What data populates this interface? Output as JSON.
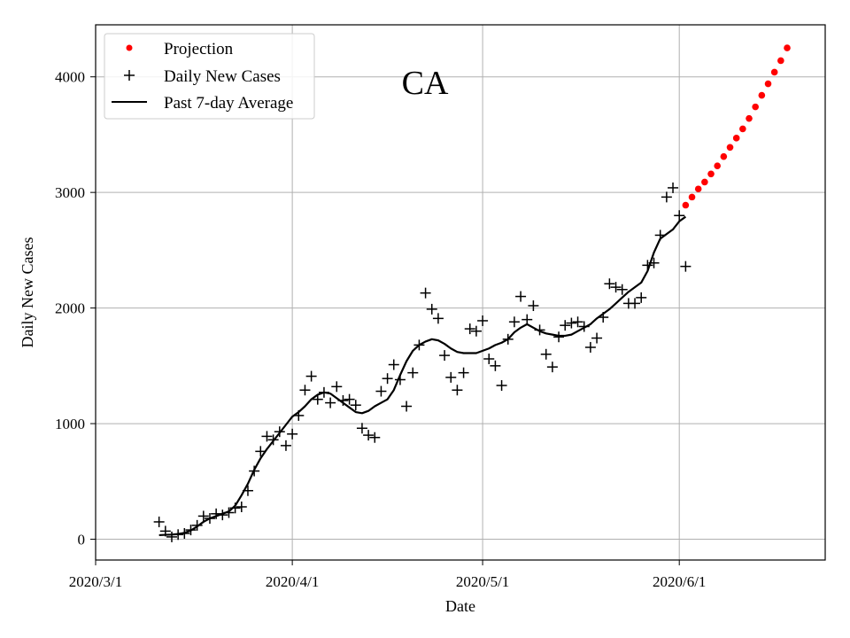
{
  "chart_data": {
    "type": "scatter",
    "title": "CA",
    "xlabel": "Date",
    "ylabel": "Daily New Cases",
    "grid": true,
    "legend_position": "top-left",
    "x_ticks": [
      {
        "day": 0,
        "label": "2020/3/1"
      },
      {
        "day": 31,
        "label": "2020/4/1"
      },
      {
        "day": 61,
        "label": "2020/5/1"
      },
      {
        "day": 92,
        "label": "2020/6/1"
      }
    ],
    "y_ticks": [
      0,
      1000,
      2000,
      3000,
      4000
    ],
    "xlim": [
      0,
      115
    ],
    "ylim": [
      -180,
      4450
    ],
    "x_unit": "days since 2020/3/1",
    "series": [
      {
        "name": "Projection",
        "marker": "dot",
        "color": "#ff0000",
        "points": [
          [
            93,
            2890
          ],
          [
            94,
            2960
          ],
          [
            95,
            3030
          ],
          [
            96,
            3090
          ],
          [
            97,
            3160
          ],
          [
            98,
            3230
          ],
          [
            99,
            3310
          ],
          [
            100,
            3390
          ],
          [
            101,
            3470
          ],
          [
            102,
            3550
          ],
          [
            103,
            3640
          ],
          [
            104,
            3740
          ],
          [
            105,
            3840
          ],
          [
            106,
            3940
          ],
          [
            107,
            4040
          ],
          [
            108,
            4140
          ],
          [
            109,
            4250
          ]
        ]
      },
      {
        "name": "Daily New Cases",
        "marker": "plus",
        "color": "#000000",
        "points": [
          [
            10,
            150
          ],
          [
            11,
            70
          ],
          [
            12,
            20
          ],
          [
            13,
            40
          ],
          [
            14,
            50
          ],
          [
            15,
            80
          ],
          [
            16,
            120
          ],
          [
            17,
            200
          ],
          [
            18,
            180
          ],
          [
            19,
            220
          ],
          [
            20,
            210
          ],
          [
            21,
            230
          ],
          [
            22,
            270
          ],
          [
            23,
            280
          ],
          [
            24,
            420
          ],
          [
            25,
            590
          ],
          [
            26,
            760
          ],
          [
            27,
            890
          ],
          [
            28,
            860
          ],
          [
            29,
            930
          ],
          [
            30,
            810
          ],
          [
            31,
            910
          ],
          [
            32,
            1070
          ],
          [
            33,
            1290
          ],
          [
            34,
            1410
          ],
          [
            35,
            1210
          ],
          [
            36,
            1270
          ],
          [
            37,
            1180
          ],
          [
            38,
            1320
          ],
          [
            39,
            1200
          ],
          [
            40,
            1210
          ],
          [
            41,
            1160
          ],
          [
            42,
            960
          ],
          [
            43,
            900
          ],
          [
            44,
            880
          ],
          [
            45,
            1280
          ],
          [
            46,
            1390
          ],
          [
            47,
            1510
          ],
          [
            48,
            1380
          ],
          [
            49,
            1150
          ],
          [
            50,
            1440
          ],
          [
            51,
            1680
          ],
          [
            52,
            2130
          ],
          [
            53,
            1990
          ],
          [
            54,
            1910
          ],
          [
            55,
            1590
          ],
          [
            56,
            1400
          ],
          [
            57,
            1290
          ],
          [
            58,
            1440
          ],
          [
            59,
            1820
          ],
          [
            60,
            1800
          ],
          [
            61,
            1890
          ],
          [
            62,
            1560
          ],
          [
            63,
            1500
          ],
          [
            64,
            1330
          ],
          [
            65,
            1730
          ],
          [
            66,
            1880
          ],
          [
            67,
            2100
          ],
          [
            68,
            1900
          ],
          [
            69,
            2020
          ],
          [
            70,
            1810
          ],
          [
            71,
            1600
          ],
          [
            72,
            1490
          ],
          [
            73,
            1750
          ],
          [
            74,
            1850
          ],
          [
            75,
            1870
          ],
          [
            76,
            1880
          ],
          [
            77,
            1840
          ],
          [
            78,
            1660
          ],
          [
            79,
            1740
          ],
          [
            80,
            1920
          ],
          [
            81,
            2210
          ],
          [
            82,
            2180
          ],
          [
            83,
            2160
          ],
          [
            84,
            2040
          ],
          [
            85,
            2040
          ],
          [
            86,
            2090
          ],
          [
            87,
            2370
          ],
          [
            88,
            2390
          ],
          [
            89,
            2630
          ],
          [
            90,
            2960
          ],
          [
            91,
            3040
          ],
          [
            92,
            2800
          ],
          [
            93,
            2360
          ]
        ]
      },
      {
        "name": "Past 7-day Average",
        "marker": "line",
        "color": "#000000",
        "points": [
          [
            10,
            35
          ],
          [
            11,
            38
          ],
          [
            12,
            40
          ],
          [
            13,
            45
          ],
          [
            14,
            55
          ],
          [
            15,
            75
          ],
          [
            16,
            110
          ],
          [
            17,
            150
          ],
          [
            18,
            180
          ],
          [
            19,
            200
          ],
          [
            20,
            220
          ],
          [
            21,
            240
          ],
          [
            22,
            290
          ],
          [
            23,
            380
          ],
          [
            24,
            480
          ],
          [
            25,
            600
          ],
          [
            26,
            700
          ],
          [
            27,
            780
          ],
          [
            28,
            850
          ],
          [
            29,
            920
          ],
          [
            30,
            990
          ],
          [
            31,
            1060
          ],
          [
            32,
            1100
          ],
          [
            33,
            1150
          ],
          [
            34,
            1210
          ],
          [
            35,
            1250
          ],
          [
            36,
            1270
          ],
          [
            37,
            1260
          ],
          [
            38,
            1220
          ],
          [
            39,
            1180
          ],
          [
            40,
            1140
          ],
          [
            41,
            1100
          ],
          [
            42,
            1090
          ],
          [
            43,
            1110
          ],
          [
            44,
            1150
          ],
          [
            45,
            1180
          ],
          [
            46,
            1210
          ],
          [
            47,
            1290
          ],
          [
            48,
            1420
          ],
          [
            49,
            1540
          ],
          [
            50,
            1630
          ],
          [
            51,
            1680
          ],
          [
            52,
            1710
          ],
          [
            53,
            1730
          ],
          [
            54,
            1720
          ],
          [
            55,
            1690
          ],
          [
            56,
            1650
          ],
          [
            57,
            1620
          ],
          [
            58,
            1610
          ],
          [
            59,
            1610
          ],
          [
            60,
            1610
          ],
          [
            61,
            1630
          ],
          [
            62,
            1650
          ],
          [
            63,
            1680
          ],
          [
            64,
            1700
          ],
          [
            65,
            1730
          ],
          [
            66,
            1790
          ],
          [
            67,
            1830
          ],
          [
            68,
            1860
          ],
          [
            69,
            1830
          ],
          [
            70,
            1800
          ],
          [
            71,
            1780
          ],
          [
            72,
            1770
          ],
          [
            73,
            1760
          ],
          [
            74,
            1760
          ],
          [
            75,
            1770
          ],
          [
            76,
            1800
          ],
          [
            77,
            1830
          ],
          [
            78,
            1860
          ],
          [
            79,
            1910
          ],
          [
            80,
            1950
          ],
          [
            81,
            1990
          ],
          [
            82,
            2040
          ],
          [
            83,
            2090
          ],
          [
            84,
            2140
          ],
          [
            85,
            2180
          ],
          [
            86,
            2220
          ],
          [
            87,
            2320
          ],
          [
            88,
            2480
          ],
          [
            89,
            2600
          ],
          [
            90,
            2640
          ],
          [
            91,
            2680
          ],
          [
            92,
            2750
          ],
          [
            93,
            2790
          ]
        ]
      }
    ]
  }
}
